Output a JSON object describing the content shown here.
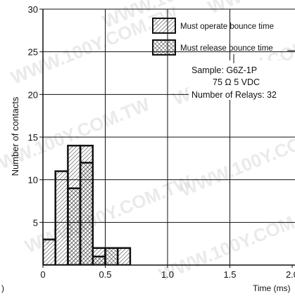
{
  "chart_data": {
    "type": "bar",
    "subtype": "overlaid histogram",
    "ylabel": "Number of contacts",
    "xlabel": "Time (ms)",
    "xlim": [
      0,
      2.0
    ],
    "ylim": [
      0,
      30
    ],
    "x_ticks": [
      "0",
      "0.5",
      "1.0",
      "1.5",
      "2.0"
    ],
    "y_ticks": [
      "5",
      "10",
      "15",
      "20",
      "25",
      "30"
    ],
    "grid": true,
    "bin_width": 0.1,
    "series": [
      {
        "name": "Must operate bounce time",
        "pattern": "diagonal-hatch",
        "bins": [
          {
            "x0": 0.0,
            "value": 3
          },
          {
            "x0": 0.1,
            "value": 11
          },
          {
            "x0": 0.2,
            "value": 14
          },
          {
            "x0": 0.3,
            "value": 14
          },
          {
            "x0": 0.4,
            "value": 2
          },
          {
            "x0": 0.6,
            "value": 2
          }
        ]
      },
      {
        "name": "Must release bounce time",
        "pattern": "cross-hatch",
        "bins": [
          {
            "x0": 0.2,
            "value": 9
          },
          {
            "x0": 0.3,
            "value": 12
          },
          {
            "x0": 0.4,
            "value": 1
          },
          {
            "x0": 0.5,
            "value": 2
          }
        ]
      }
    ],
    "annotation": {
      "sample": "Sample: G6Z-1P",
      "rating": "75 Ω  5 VDC",
      "count": "Number of Relays: 32"
    },
    "edge_fragment": ")"
  },
  "watermark": "WWW.100Y.COM.TW"
}
